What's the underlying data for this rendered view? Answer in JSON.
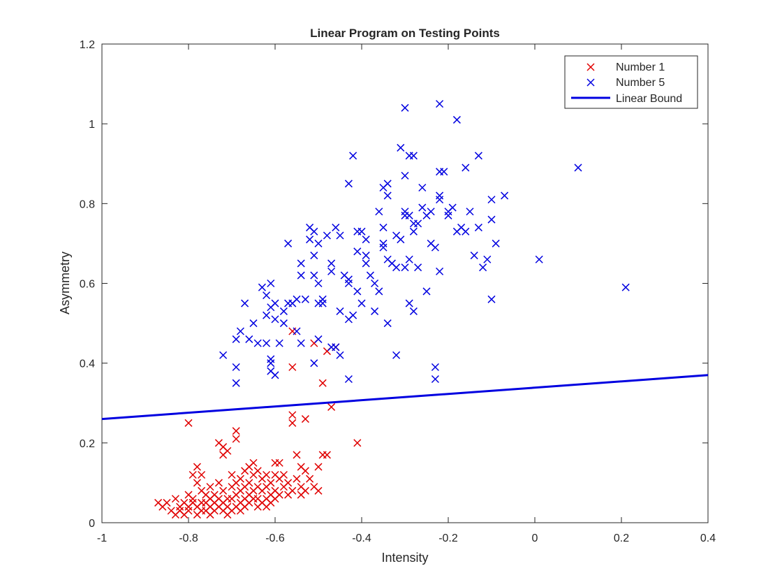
{
  "chart_data": {
    "type": "scatter",
    "title": "Linear Program on Testing Points",
    "xlabel": "Intensity",
    "ylabel": "Asymmetry",
    "xlim": [
      -1,
      0.4
    ],
    "ylim": [
      0,
      1.2
    ],
    "xticks": [
      "-1",
      "-0.8",
      "-0.6",
      "-0.4",
      "-0.2",
      "0",
      "0.2",
      "0.4"
    ],
    "yticks": [
      "0",
      "0.2",
      "0.4",
      "0.6",
      "0.8",
      "1",
      "1.2"
    ],
    "grid": false,
    "legend": {
      "placement": "top-right",
      "entries": [
        "Number 1",
        "Number 5",
        "Linear Bound"
      ]
    },
    "series": [
      {
        "name": "Number 1",
        "marker": "x",
        "color": "#e00000",
        "points": [
          [
            -0.87,
            0.05
          ],
          [
            -0.86,
            0.04
          ],
          [
            -0.85,
            0.05
          ],
          [
            -0.84,
            0.03
          ],
          [
            -0.83,
            0.02
          ],
          [
            -0.83,
            0.06
          ],
          [
            -0.82,
            0.04
          ],
          [
            -0.82,
            0.03
          ],
          [
            -0.81,
            0.05
          ],
          [
            -0.81,
            0.02
          ],
          [
            -0.8,
            0.07
          ],
          [
            -0.8,
            0.04
          ],
          [
            -0.8,
            0.03
          ],
          [
            -0.8,
            0.25
          ],
          [
            -0.79,
            0.12
          ],
          [
            -0.79,
            0.06
          ],
          [
            -0.79,
            0.05
          ],
          [
            -0.78,
            0.14
          ],
          [
            -0.78,
            0.1
          ],
          [
            -0.78,
            0.04
          ],
          [
            -0.78,
            0.02
          ],
          [
            -0.77,
            0.12
          ],
          [
            -0.77,
            0.08
          ],
          [
            -0.77,
            0.05
          ],
          [
            -0.77,
            0.03
          ],
          [
            -0.76,
            0.07
          ],
          [
            -0.76,
            0.05
          ],
          [
            -0.76,
            0.03
          ],
          [
            -0.75,
            0.09
          ],
          [
            -0.75,
            0.06
          ],
          [
            -0.75,
            0.04
          ],
          [
            -0.75,
            0.02
          ],
          [
            -0.74,
            0.07
          ],
          [
            -0.74,
            0.05
          ],
          [
            -0.74,
            0.03
          ],
          [
            -0.73,
            0.2
          ],
          [
            -0.73,
            0.1
          ],
          [
            -0.73,
            0.06
          ],
          [
            -0.73,
            0.04
          ],
          [
            -0.72,
            0.19
          ],
          [
            -0.72,
            0.17
          ],
          [
            -0.72,
            0.08
          ],
          [
            -0.72,
            0.05
          ],
          [
            -0.72,
            0.03
          ],
          [
            -0.71,
            0.18
          ],
          [
            -0.71,
            0.06
          ],
          [
            -0.71,
            0.04
          ],
          [
            -0.71,
            0.02
          ],
          [
            -0.7,
            0.12
          ],
          [
            -0.7,
            0.09
          ],
          [
            -0.7,
            0.06
          ],
          [
            -0.7,
            0.03
          ],
          [
            -0.69,
            0.23
          ],
          [
            -0.69,
            0.21
          ],
          [
            -0.69,
            0.1
          ],
          [
            -0.69,
            0.07
          ],
          [
            -0.69,
            0.04
          ],
          [
            -0.68,
            0.11
          ],
          [
            -0.68,
            0.08
          ],
          [
            -0.68,
            0.05
          ],
          [
            -0.68,
            0.03
          ],
          [
            -0.67,
            0.13
          ],
          [
            -0.67,
            0.09
          ],
          [
            -0.67,
            0.06
          ],
          [
            -0.67,
            0.04
          ],
          [
            -0.66,
            0.14
          ],
          [
            -0.66,
            0.1
          ],
          [
            -0.66,
            0.07
          ],
          [
            -0.66,
            0.05
          ],
          [
            -0.65,
            0.15
          ],
          [
            -0.65,
            0.12
          ],
          [
            -0.65,
            0.08
          ],
          [
            -0.65,
            0.06
          ],
          [
            -0.64,
            0.13
          ],
          [
            -0.64,
            0.09
          ],
          [
            -0.64,
            0.06
          ],
          [
            -0.64,
            0.04
          ],
          [
            -0.63,
            0.11
          ],
          [
            -0.63,
            0.08
          ],
          [
            -0.63,
            0.05
          ],
          [
            -0.62,
            0.12
          ],
          [
            -0.62,
            0.09
          ],
          [
            -0.62,
            0.06
          ],
          [
            -0.62,
            0.04
          ],
          [
            -0.61,
            0.1
          ],
          [
            -0.61,
            0.07
          ],
          [
            -0.61,
            0.05
          ],
          [
            -0.6,
            0.15
          ],
          [
            -0.6,
            0.12
          ],
          [
            -0.6,
            0.08
          ],
          [
            -0.6,
            0.06
          ],
          [
            -0.59,
            0.15
          ],
          [
            -0.59,
            0.11
          ],
          [
            -0.59,
            0.07
          ],
          [
            -0.58,
            0.12
          ],
          [
            -0.58,
            0.09
          ],
          [
            -0.57,
            0.1
          ],
          [
            -0.57,
            0.07
          ],
          [
            -0.56,
            0.48
          ],
          [
            -0.56,
            0.39
          ],
          [
            -0.56,
            0.25
          ],
          [
            -0.56,
            0.27
          ],
          [
            -0.56,
            0.08
          ],
          [
            -0.55,
            0.17
          ],
          [
            -0.55,
            0.11
          ],
          [
            -0.54,
            0.14
          ],
          [
            -0.54,
            0.09
          ],
          [
            -0.54,
            0.07
          ],
          [
            -0.53,
            0.26
          ],
          [
            -0.53,
            0.13
          ],
          [
            -0.53,
            0.08
          ],
          [
            -0.52,
            0.11
          ],
          [
            -0.51,
            0.45
          ],
          [
            -0.51,
            0.09
          ],
          [
            -0.5,
            0.14
          ],
          [
            -0.5,
            0.08
          ],
          [
            -0.49,
            0.35
          ],
          [
            -0.49,
            0.17
          ],
          [
            -0.48,
            0.17
          ],
          [
            -0.48,
            0.43
          ],
          [
            -0.47,
            0.29
          ],
          [
            -0.46,
            0.44
          ],
          [
            -0.41,
            0.2
          ]
        ]
      },
      {
        "name": "Number 5",
        "marker": "x",
        "color": "#0000e0",
        "points": [
          [
            -0.72,
            0.42
          ],
          [
            -0.69,
            0.39
          ],
          [
            -0.69,
            0.35
          ],
          [
            -0.69,
            0.46
          ],
          [
            -0.68,
            0.48
          ],
          [
            -0.67,
            0.55
          ],
          [
            -0.66,
            0.46
          ],
          [
            -0.65,
            0.5
          ],
          [
            -0.64,
            0.45
          ],
          [
            -0.63,
            0.59
          ],
          [
            -0.62,
            0.57
          ],
          [
            -0.62,
            0.52
          ],
          [
            -0.62,
            0.45
          ],
          [
            -0.61,
            0.6
          ],
          [
            -0.61,
            0.54
          ],
          [
            -0.61,
            0.41
          ],
          [
            -0.61,
            0.4
          ],
          [
            -0.61,
            0.38
          ],
          [
            -0.6,
            0.37
          ],
          [
            -0.6,
            0.55
          ],
          [
            -0.6,
            0.51
          ],
          [
            -0.59,
            0.45
          ],
          [
            -0.58,
            0.5
          ],
          [
            -0.58,
            0.53
          ],
          [
            -0.57,
            0.55
          ],
          [
            -0.57,
            0.7
          ],
          [
            -0.56,
            0.55
          ],
          [
            -0.55,
            0.56
          ],
          [
            -0.55,
            0.48
          ],
          [
            -0.54,
            0.65
          ],
          [
            -0.54,
            0.62
          ],
          [
            -0.54,
            0.45
          ],
          [
            -0.53,
            0.56
          ],
          [
            -0.52,
            0.71
          ],
          [
            -0.52,
            0.74
          ],
          [
            -0.51,
            0.73
          ],
          [
            -0.51,
            0.67
          ],
          [
            -0.51,
            0.62
          ],
          [
            -0.5,
            0.7
          ],
          [
            -0.5,
            0.55
          ],
          [
            -0.5,
            0.6
          ],
          [
            -0.5,
            0.46
          ],
          [
            -0.51,
            0.4
          ],
          [
            -0.49,
            0.55
          ],
          [
            -0.49,
            0.56
          ],
          [
            -0.48,
            0.72
          ],
          [
            -0.47,
            0.65
          ],
          [
            -0.47,
            0.63
          ],
          [
            -0.46,
            0.44
          ],
          [
            -0.46,
            0.74
          ],
          [
            -0.45,
            0.72
          ],
          [
            -0.45,
            0.53
          ],
          [
            -0.45,
            0.42
          ],
          [
            -0.44,
            0.62
          ],
          [
            -0.43,
            0.6
          ],
          [
            -0.43,
            0.61
          ],
          [
            -0.43,
            0.36
          ],
          [
            -0.43,
            0.51
          ],
          [
            -0.43,
            0.85
          ],
          [
            -0.42,
            0.92
          ],
          [
            -0.42,
            0.52
          ],
          [
            -0.41,
            0.73
          ],
          [
            -0.41,
            0.68
          ],
          [
            -0.41,
            0.58
          ],
          [
            -0.4,
            0.73
          ],
          [
            -0.4,
            0.55
          ],
          [
            -0.39,
            0.65
          ],
          [
            -0.39,
            0.67
          ],
          [
            -0.39,
            0.71
          ],
          [
            -0.38,
            0.62
          ],
          [
            -0.37,
            0.53
          ],
          [
            -0.37,
            0.6
          ],
          [
            -0.36,
            0.58
          ],
          [
            -0.36,
            0.78
          ],
          [
            -0.35,
            0.7
          ],
          [
            -0.35,
            0.69
          ],
          [
            -0.35,
            0.74
          ],
          [
            -0.35,
            0.84
          ],
          [
            -0.34,
            0.82
          ],
          [
            -0.34,
            0.85
          ],
          [
            -0.34,
            0.5
          ],
          [
            -0.34,
            0.66
          ],
          [
            -0.33,
            0.65
          ],
          [
            -0.32,
            0.72
          ],
          [
            -0.32,
            0.64
          ],
          [
            -0.32,
            0.42
          ],
          [
            -0.31,
            0.94
          ],
          [
            -0.31,
            0.71
          ],
          [
            -0.3,
            0.77
          ],
          [
            -0.3,
            0.78
          ],
          [
            -0.3,
            0.87
          ],
          [
            -0.3,
            0.64
          ],
          [
            -0.29,
            0.77
          ],
          [
            -0.29,
            0.92
          ],
          [
            -0.29,
            0.66
          ],
          [
            -0.29,
            0.55
          ],
          [
            -0.28,
            0.75
          ],
          [
            -0.28,
            0.73
          ],
          [
            -0.28,
            0.53
          ],
          [
            -0.28,
            0.92
          ],
          [
            -0.27,
            0.64
          ],
          [
            -0.27,
            0.75
          ],
          [
            -0.26,
            0.79
          ],
          [
            -0.26,
            0.84
          ],
          [
            -0.25,
            0.58
          ],
          [
            -0.25,
            0.77
          ],
          [
            -0.24,
            0.78
          ],
          [
            -0.24,
            0.7
          ],
          [
            -0.23,
            0.39
          ],
          [
            -0.23,
            0.36
          ],
          [
            -0.23,
            0.69
          ],
          [
            -0.22,
            0.88
          ],
          [
            -0.22,
            0.81
          ],
          [
            -0.22,
            0.82
          ],
          [
            -0.22,
            0.63
          ],
          [
            -0.21,
            0.88
          ],
          [
            -0.2,
            0.78
          ],
          [
            -0.2,
            0.77
          ],
          [
            -0.19,
            0.79
          ],
          [
            -0.18,
            0.73
          ],
          [
            -0.18,
            1.01
          ],
          [
            -0.17,
            0.74
          ],
          [
            -0.16,
            0.89
          ],
          [
            -0.16,
            0.73
          ],
          [
            -0.15,
            0.78
          ],
          [
            -0.14,
            0.67
          ],
          [
            -0.13,
            0.74
          ],
          [
            -0.13,
            0.92
          ],
          [
            -0.12,
            0.64
          ],
          [
            -0.11,
            0.66
          ],
          [
            -0.1,
            0.76
          ],
          [
            -0.1,
            0.81
          ],
          [
            -0.1,
            0.56
          ],
          [
            -0.09,
            0.7
          ],
          [
            -0.07,
            0.82
          ],
          [
            -0.3,
            1.04
          ],
          [
            -0.22,
            1.05
          ],
          [
            0.01,
            0.66
          ],
          [
            0.1,
            0.89
          ],
          [
            0.21,
            0.59
          ],
          [
            -0.47,
            0.44
          ]
        ]
      },
      {
        "name": "Linear Bound",
        "type": "line",
        "color": "#0000e0",
        "x": [
          -1,
          0.4
        ],
        "y": [
          0.26,
          0.37
        ]
      }
    ]
  }
}
